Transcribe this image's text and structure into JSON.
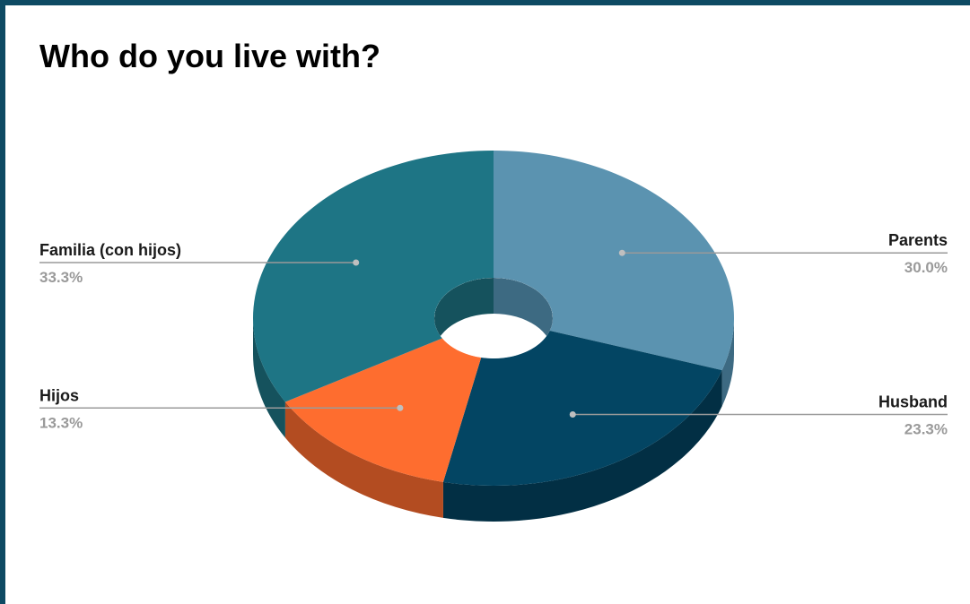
{
  "chart_data": {
    "type": "pie",
    "style": "3d-donut",
    "title": "Who do you live with?",
    "slices": [
      {
        "label": "Parents",
        "value": 30.0,
        "percent_label": "30.0%",
        "color": "#5b93b0",
        "side_color": "#3d6a82"
      },
      {
        "label": "Husband",
        "value": 23.3,
        "percent_label": "23.3%",
        "color": "#034563",
        "side_color": "#022f44"
      },
      {
        "label": "Hijos",
        "value": 13.3,
        "percent_label": "13.3%",
        "color": "#fe6d2f",
        "side_color": "#b34c21"
      },
      {
        "label": "Familia (con hijos)",
        "value": 33.3,
        "percent_label": "33.3%",
        "color": "#1e7585",
        "side_color": "#15525d"
      }
    ],
    "legend": "none",
    "labels_position": "outside-with-leader-lines"
  },
  "colors": {
    "frame_border": "#0e4a63",
    "leader_line": "#9a9a9a"
  }
}
